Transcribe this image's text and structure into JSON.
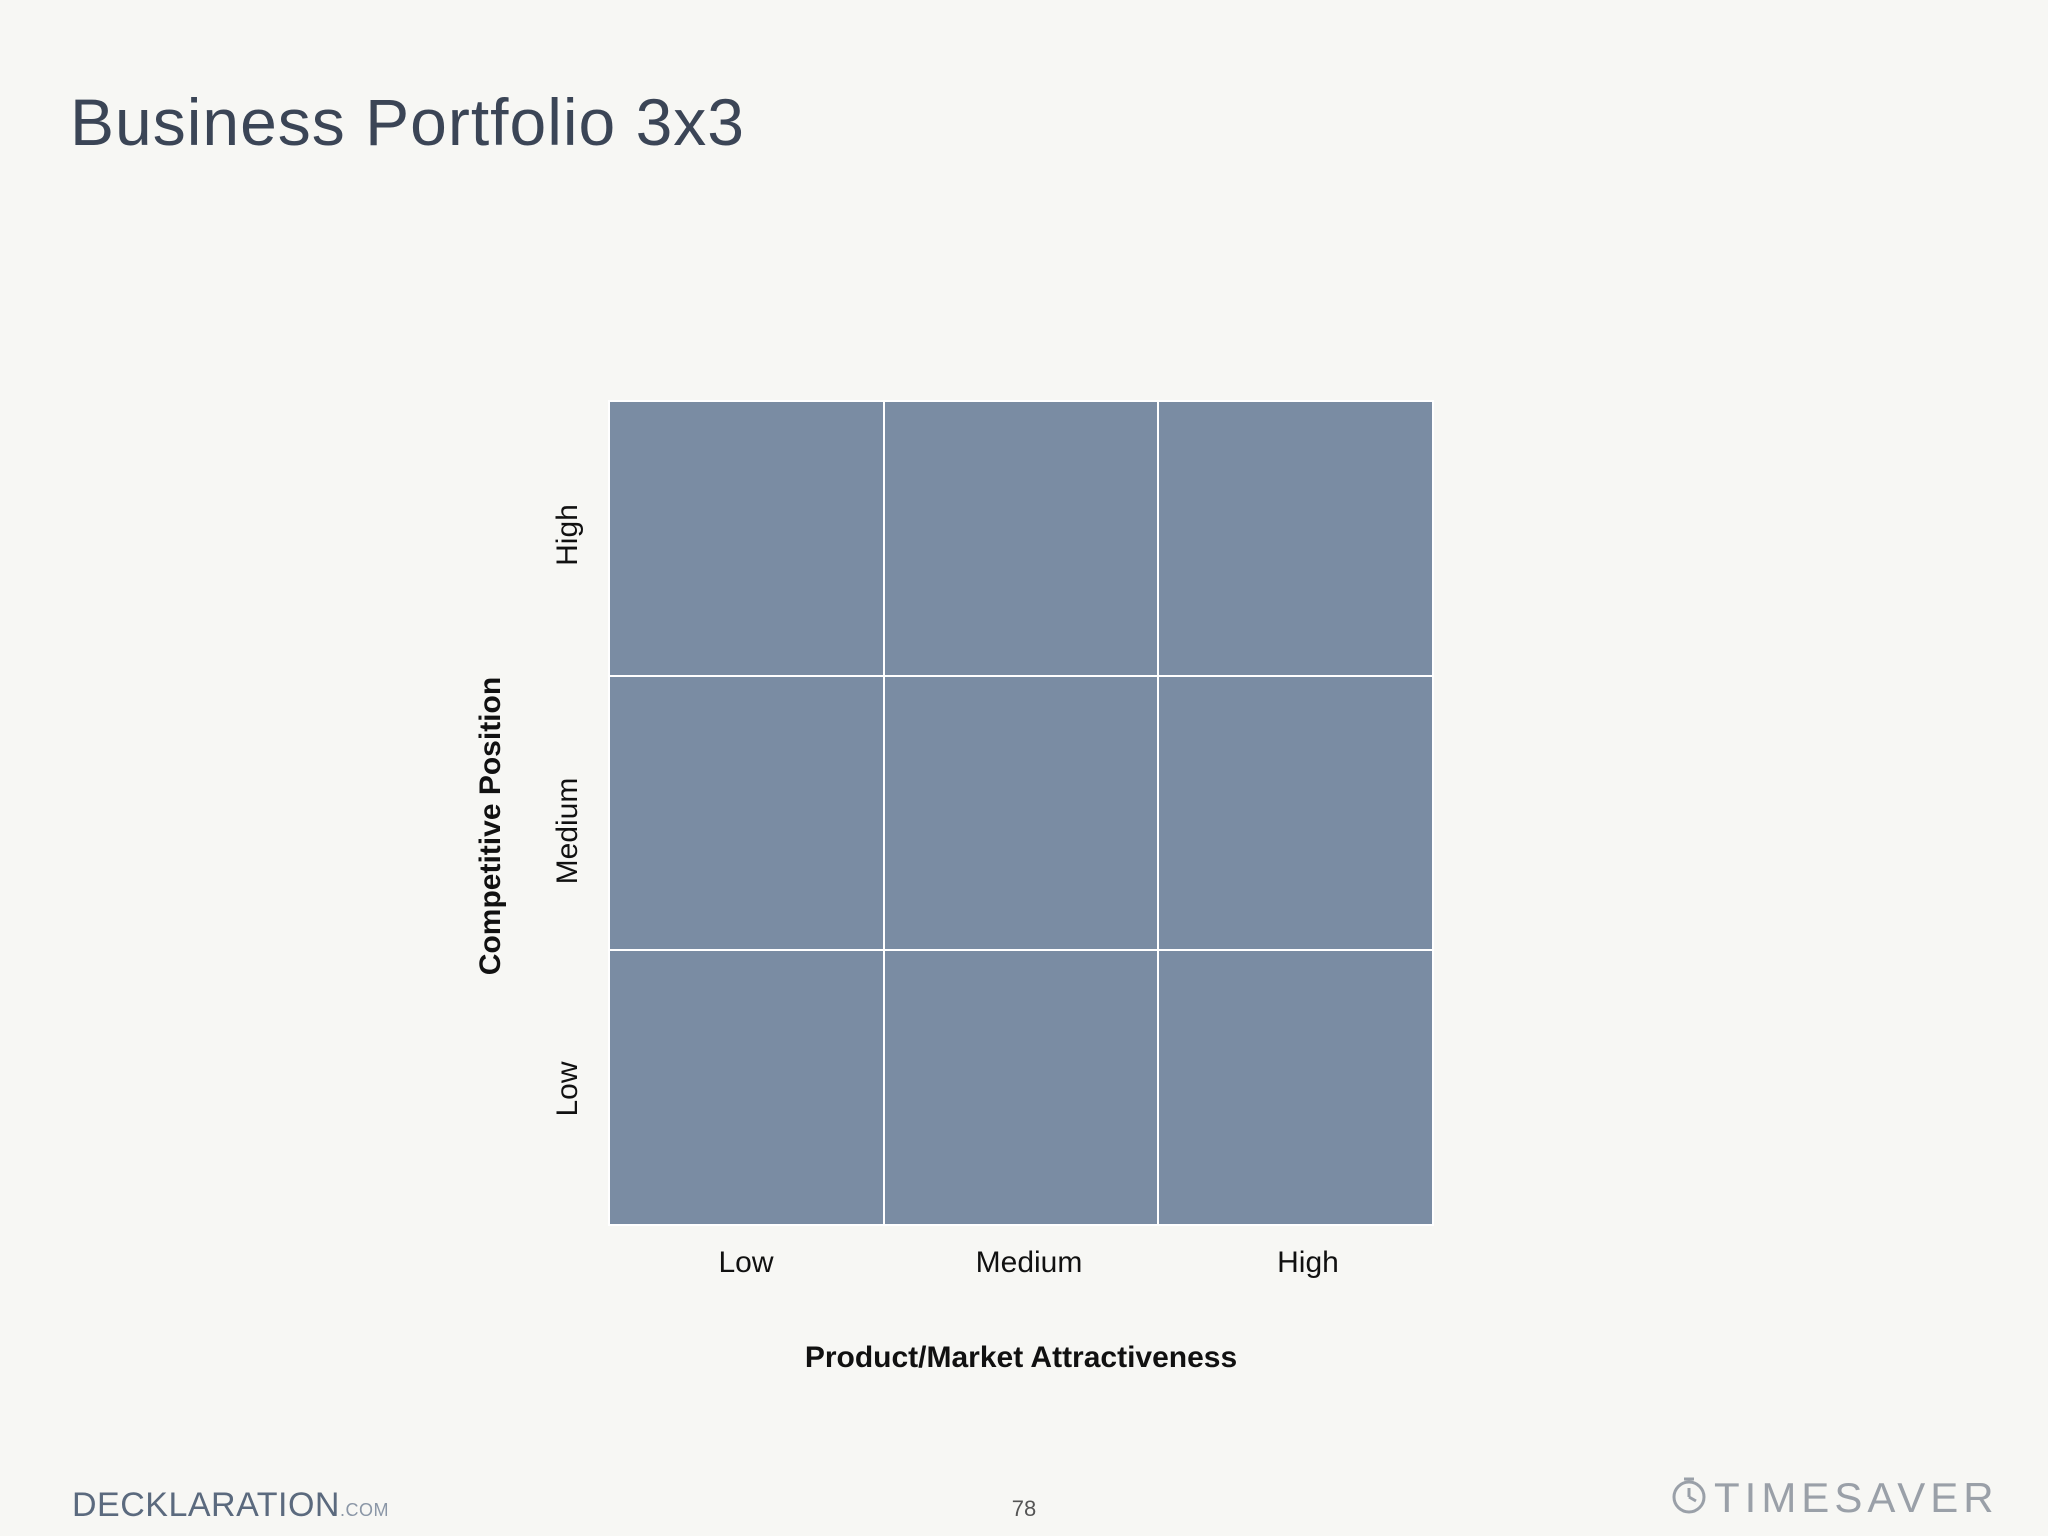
{
  "slide": {
    "title": "Business Portfolio 3x3",
    "page_number": "78"
  },
  "matrix": {
    "x_axis_title": "Product/Market Attractiveness",
    "y_axis_title": "Competitive Position",
    "x_levels": [
      "Low",
      "Medium",
      "High"
    ],
    "y_levels": [
      "High",
      "Medium",
      "Low"
    ],
    "cell_color": "#7a8ca3"
  },
  "footer": {
    "left_brand": "DECKLARATION",
    "left_brand_suffix": ".COM",
    "right_brand": "TIMESAVER",
    "right_icon": "clock-icon"
  }
}
